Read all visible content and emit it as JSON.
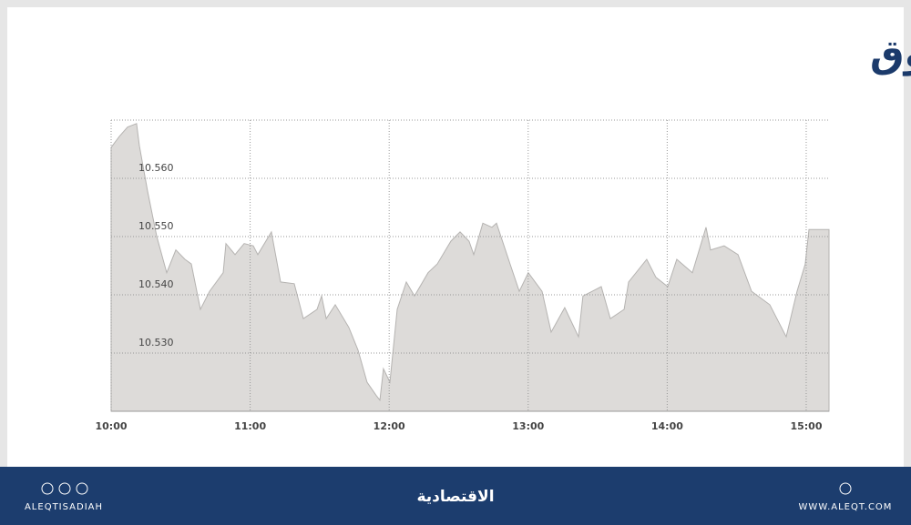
{
  "chart_data": {
    "type": "area",
    "title": "مؤشر السوق",
    "x": [
      10.0,
      10.059,
      10.118,
      10.183,
      10.203,
      10.262,
      10.328,
      10.4,
      10.465,
      10.531,
      10.577,
      10.642,
      10.708,
      10.806,
      10.826,
      10.891,
      10.957,
      11.022,
      11.055,
      11.153,
      11.219,
      11.317,
      11.383,
      11.481,
      11.514,
      11.547,
      11.612,
      11.71,
      11.776,
      11.841,
      11.907,
      11.933,
      11.959,
      12.005,
      12.058,
      12.123,
      12.182,
      12.28,
      12.346,
      12.444,
      12.51,
      12.575,
      12.608,
      12.674,
      12.739,
      12.772,
      12.87,
      12.936,
      13.001,
      13.1,
      13.165,
      13.263,
      13.362,
      13.394,
      13.46,
      13.526,
      13.591,
      13.69,
      13.722,
      13.853,
      13.919,
      14.004,
      14.069,
      14.181,
      14.279,
      14.312,
      14.41,
      14.509,
      14.607,
      14.738,
      14.856,
      14.934,
      14.993,
      15.02,
      15.164
    ],
    "values": [
      10.5653,
      10.5672,
      10.5688,
      10.5694,
      10.5656,
      10.5578,
      10.55,
      10.5438,
      10.5477,
      10.5461,
      10.5453,
      10.5375,
      10.5406,
      10.5438,
      10.5488,
      10.5469,
      10.5488,
      10.5484,
      10.5469,
      10.5508,
      10.5422,
      10.5419,
      10.5359,
      10.5375,
      10.5398,
      10.5359,
      10.5383,
      10.5344,
      10.5305,
      10.525,
      10.5227,
      10.5219,
      10.5273,
      10.525,
      10.5375,
      10.5422,
      10.5398,
      10.5438,
      10.5453,
      10.5492,
      10.5508,
      10.5492,
      10.5469,
      10.5523,
      10.5516,
      10.5523,
      10.5453,
      10.5406,
      10.5438,
      10.5406,
      10.5336,
      10.5378,
      10.5328,
      10.5398,
      10.5406,
      10.5414,
      10.5359,
      10.5375,
      10.5422,
      10.5461,
      10.543,
      10.5414,
      10.5461,
      10.5438,
      10.5516,
      10.5477,
      10.5484,
      10.5469,
      10.5406,
      10.5383,
      10.5328,
      10.5406,
      10.5453,
      10.5512,
      10.5512
    ],
    "color": "#dddbd9",
    "xlim": [
      10,
      15.164
    ],
    "ylim": [
      10.52,
      10.57
    ],
    "xticks": [
      {
        "value": 10,
        "label": "10:00"
      },
      {
        "value": 11,
        "label": "11:00"
      },
      {
        "value": 12,
        "label": "12:00"
      },
      {
        "value": 13,
        "label": "13:00"
      },
      {
        "value": 14,
        "label": "14:00"
      },
      {
        "value": 15,
        "label": "15:00"
      }
    ],
    "yticks": [
      {
        "value": 10.53,
        "label": "10.530"
      },
      {
        "value": 10.54,
        "label": "10.540"
      },
      {
        "value": 10.55,
        "label": "10.550"
      },
      {
        "value": 10.56,
        "label": "10.560"
      }
    ],
    "grid": true
  },
  "footer": {
    "handle": "ALEQTISADIAH",
    "brand": "الاقتصادية",
    "website": "WWW.ALEQT.COM"
  }
}
